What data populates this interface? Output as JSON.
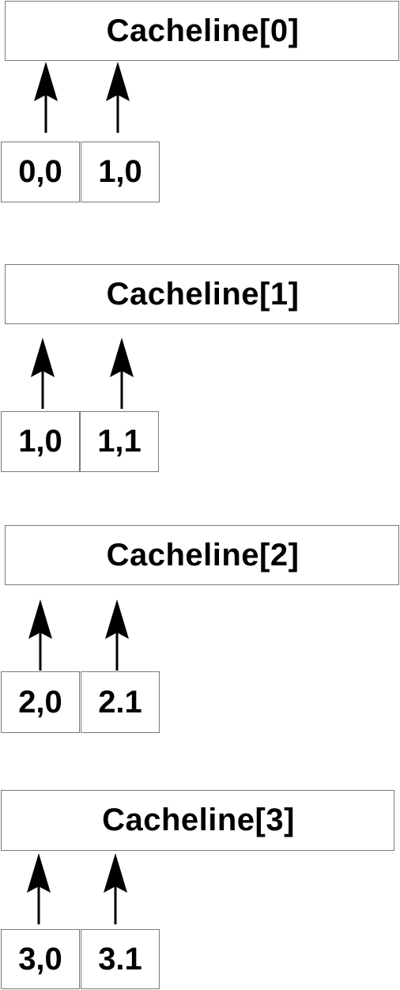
{
  "groups": [
    {
      "title": "Cacheline[0]",
      "cells": [
        "0,0",
        "1,0"
      ]
    },
    {
      "title": "Cacheline[1]",
      "cells": [
        "1,0",
        "1,1"
      ]
    },
    {
      "title": "Cacheline[2]",
      "cells": [
        "2,0",
        "2.1"
      ]
    },
    {
      "title": "Cacheline[3]",
      "cells": [
        "3,0",
        "3.1"
      ]
    }
  ],
  "colors": {
    "border": "#7a7a7a",
    "text": "#000000",
    "arrow": "#000000",
    "background": "#ffffff"
  },
  "icons": {
    "arrow": "arrow-up-icon"
  }
}
